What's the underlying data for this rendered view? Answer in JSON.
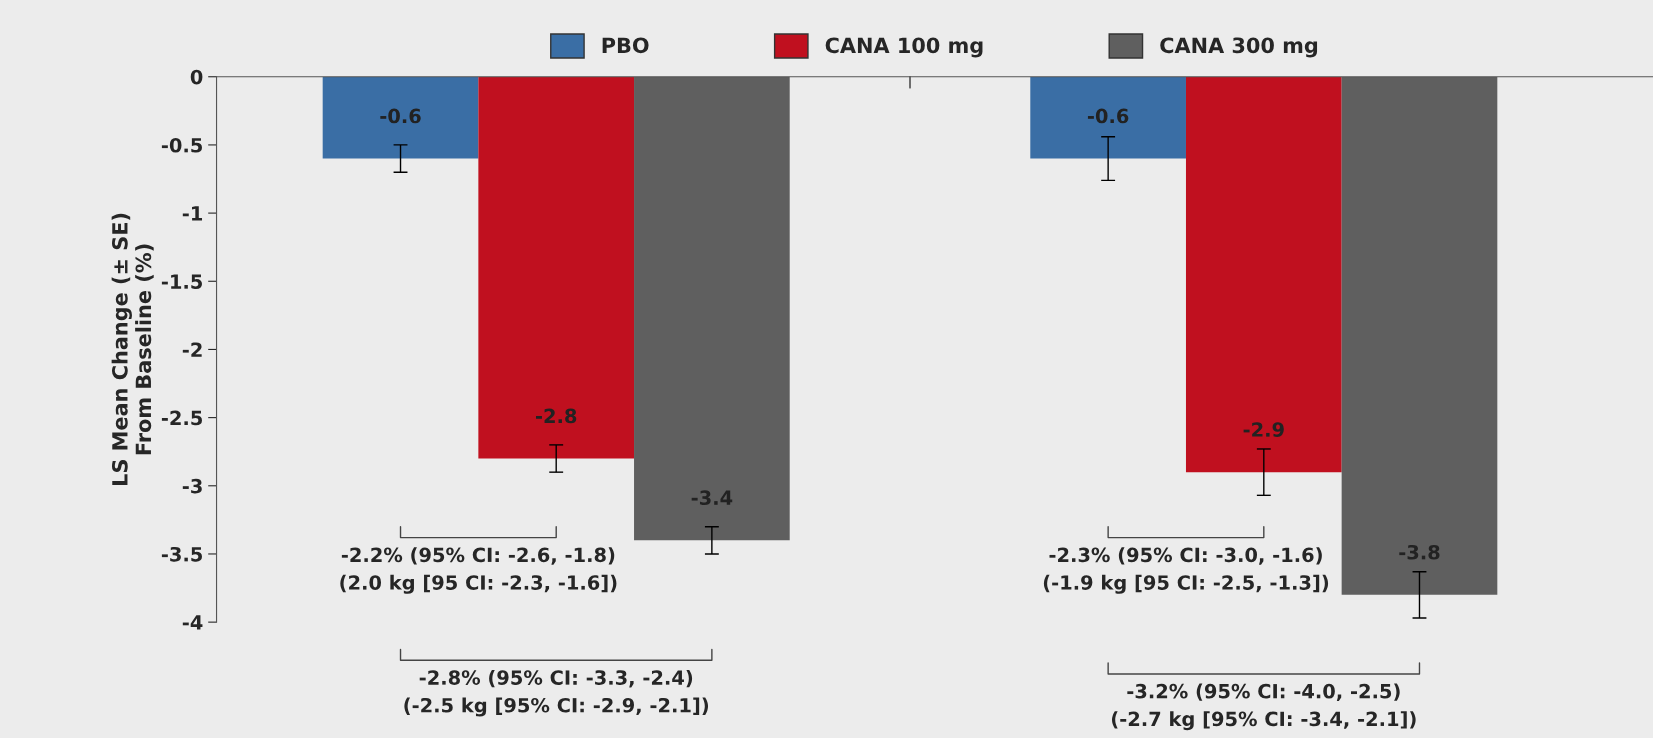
{
  "chart_data": {
    "type": "bar",
    "ylabel": "LS Mean Change (± SE)\nFrom Baseline (%)",
    "categories": [
      null,
      null
    ],
    "series": [
      {
        "name": "PBO",
        "color": "#3a6ea5",
        "values": [
          -0.6,
          -0.6
        ],
        "errors": [
          0.1,
          0.16
        ]
      },
      {
        "name": "CANA 100 mg",
        "color": "#c0101f",
        "values": [
          -2.8,
          -2.9
        ],
        "errors": [
          0.1,
          0.17
        ]
      },
      {
        "name": "CANA 300 mg",
        "color": "#5f5f5f",
        "values": [
          -3.4,
          -3.8
        ],
        "errors": [
          0.1,
          0.17
        ]
      }
    ],
    "ylim": [
      -4,
      0
    ],
    "yticks": [
      0,
      -0.5,
      -1,
      -1.5,
      -2,
      -2.5,
      -3,
      -3.5,
      -4
    ],
    "data_labels": true,
    "legend": "top",
    "grid": false,
    "annotations": [
      "-2.2% (95% CI: -2.6, -1.8)\n(2.0 kg [95 CI: -2.3, -1.6])",
      "-2.8% (95% CI: -3.3, -2.4)\n(-2.5 kg [95% CI: -2.9, -2.1])",
      "-2.3% (95% CI: -3.0, -1.6)\n(-1.9 kg [95 CI: -2.5, -1.3])",
      "-3.2% (95% CI: -4.0, -2.5)\n(-2.7 kg [95% CI: -3.4, -2.1])"
    ]
  }
}
